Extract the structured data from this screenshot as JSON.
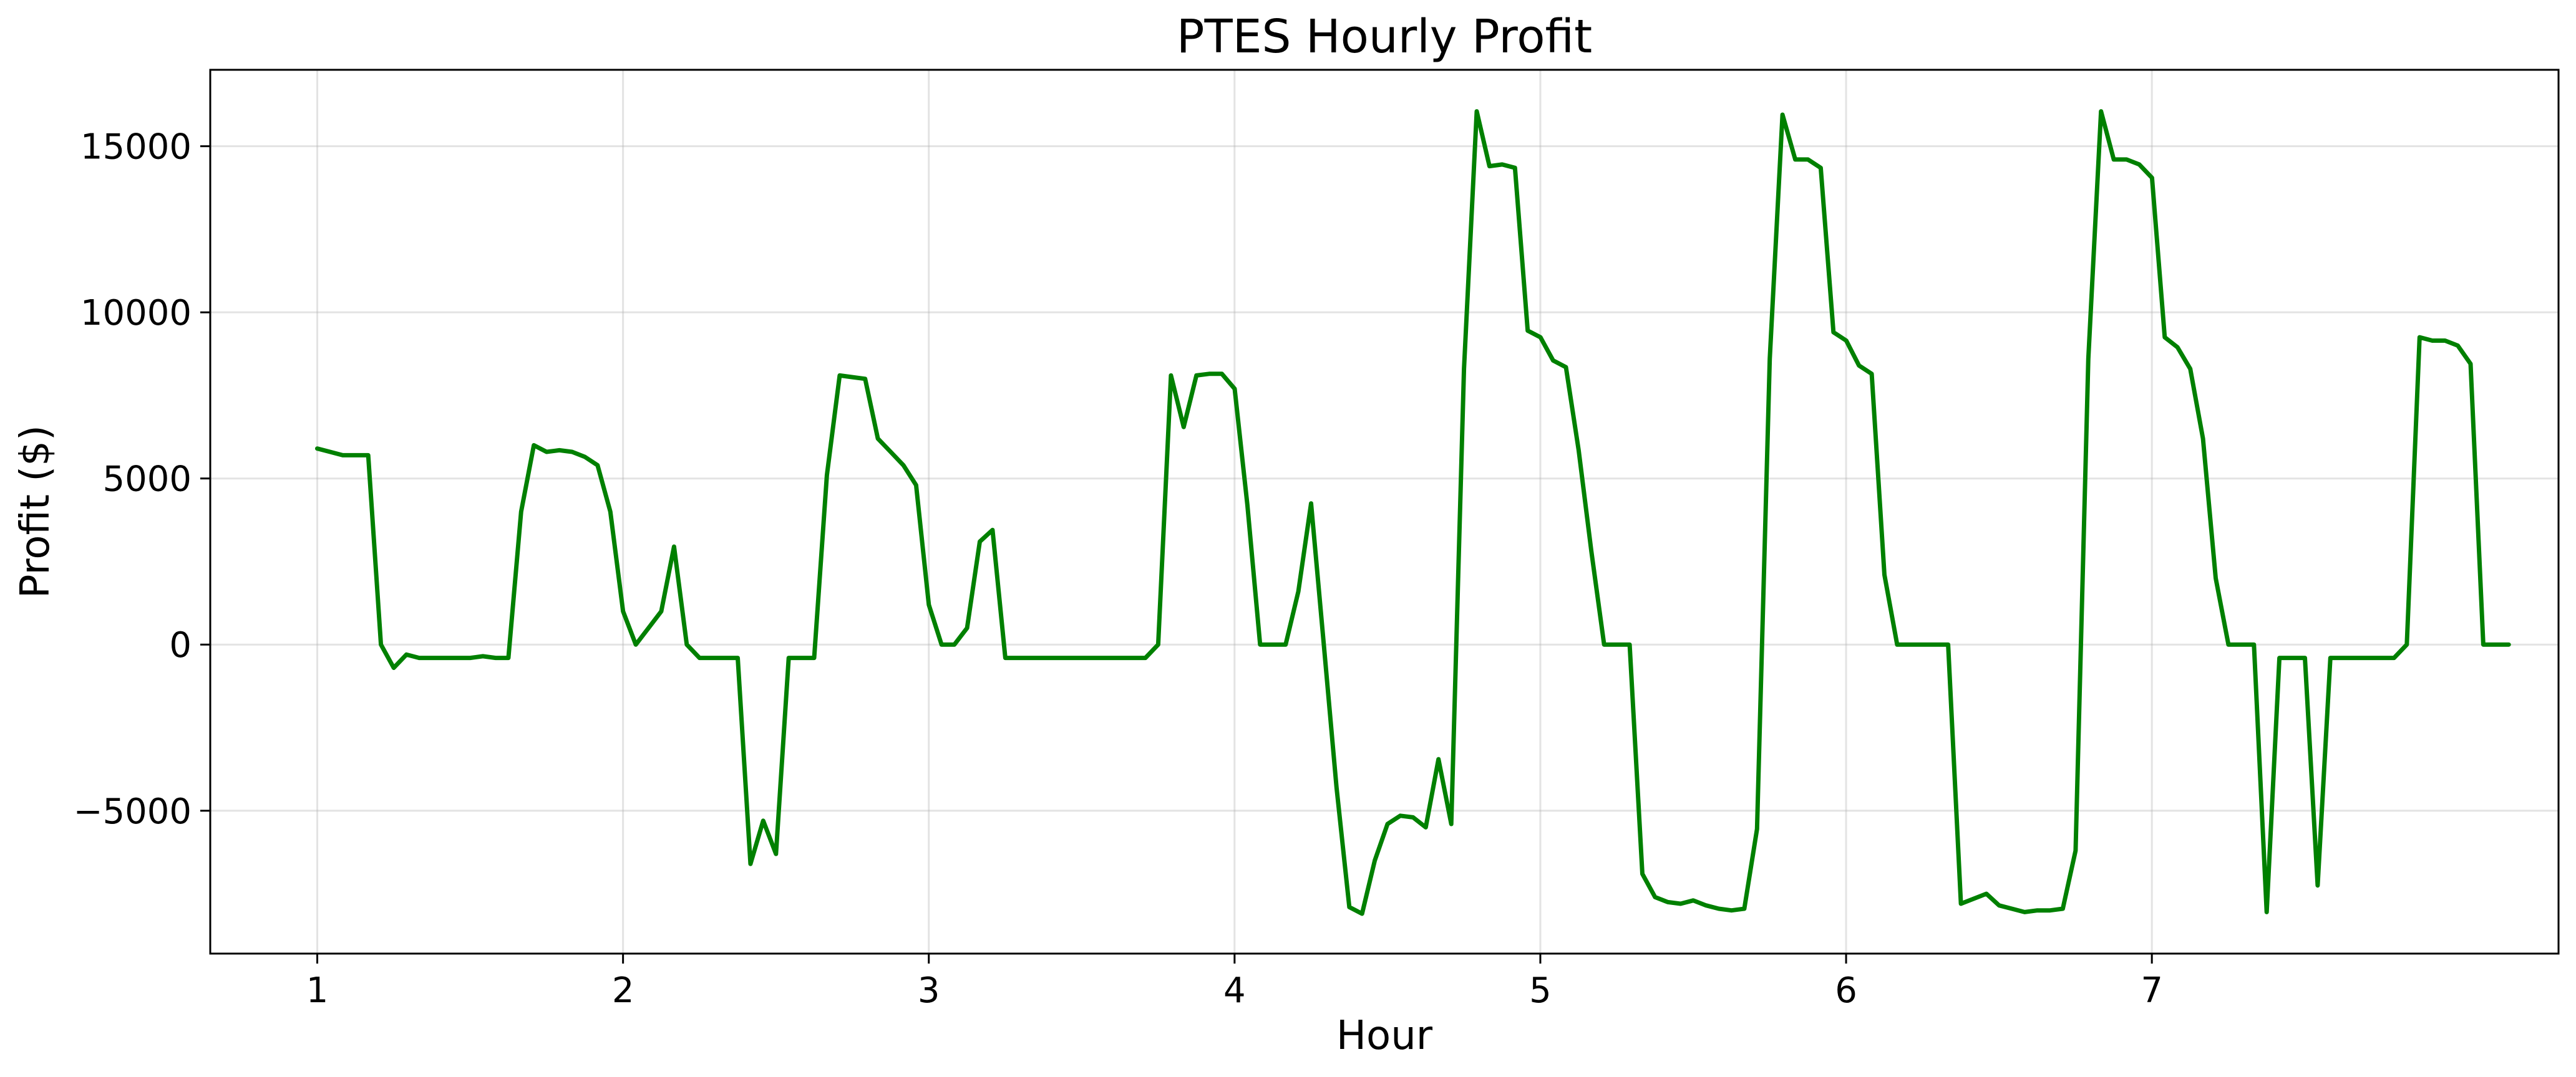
{
  "chart_data": {
    "type": "line",
    "title": "PTES Hourly Profit",
    "xlabel": "Hour",
    "ylabel": "Profit ($)",
    "xlim": [
      0.65,
      8.33
    ],
    "ylim": [
      -9300,
      17300
    ],
    "x_ticks": [
      1,
      2,
      3,
      4,
      5,
      6,
      7
    ],
    "x_tick_labels": [
      "1",
      "2",
      "3",
      "4",
      "5",
      "6",
      "7"
    ],
    "y_ticks": [
      -5000,
      0,
      5000,
      10000,
      15000
    ],
    "y_tick_labels": [
      "−5000",
      "0",
      "5000",
      "10000",
      "15000"
    ],
    "grid": true,
    "series_color": "#008000",
    "x_step": 0.04167,
    "x_start": 1,
    "values": [
      5900,
      5800,
      5700,
      5700,
      5700,
      0,
      -700,
      -300,
      -400,
      -400,
      -400,
      -400,
      -400,
      -350,
      -400,
      -400,
      4000,
      6000,
      5800,
      5850,
      5800,
      5650,
      5400,
      4000,
      1000,
      0,
      500,
      1000,
      2950,
      0,
      -400,
      -400,
      -400,
      -400,
      -6600,
      -5300,
      -6300,
      -400,
      -400,
      -400,
      5100,
      8100,
      8050,
      8000,
      6200,
      5800,
      5400,
      4800,
      1200,
      0,
      0,
      500,
      3100,
      3450,
      -400,
      -400,
      -400,
      -400,
      -400,
      -400,
      -400,
      -400,
      -400,
      -400,
      -400,
      -400,
      0,
      8100,
      6550,
      8100,
      8150,
      8150,
      7700,
      4200,
      0,
      0,
      0,
      1600,
      4250,
      0,
      -4300,
      -7900,
      -8100,
      -6500,
      -5400,
      -5150,
      -5200,
      -5500,
      -3450,
      -5400,
      8300,
      16050,
      14400,
      14450,
      14350,
      9450,
      9250,
      8550,
      8350,
      5850,
      2800,
      0,
      0,
      0,
      -6900,
      -7600,
      -7750,
      -7800,
      -7700,
      -7850,
      -7950,
      -8000,
      -7950,
      -5550,
      8600,
      15950,
      14600,
      14600,
      14350,
      9400,
      9150,
      8400,
      8150,
      2100,
      0,
      0,
      0,
      0,
      0,
      -7800,
      -7650,
      -7500,
      -7850,
      -7950,
      -8050,
      -8000,
      -8000,
      -7950,
      -6200,
      8600,
      16050,
      14600,
      14600,
      14450,
      14050,
      9250,
      8950,
      8300,
      6200,
      2000,
      0,
      0,
      0,
      -8050,
      -400,
      -400,
      -400,
      -7250,
      -400,
      -400,
      -400,
      -400,
      -400,
      -400,
      0,
      9250,
      9150,
      9150,
      9000,
      8450,
      0,
      0,
      0
    ]
  }
}
